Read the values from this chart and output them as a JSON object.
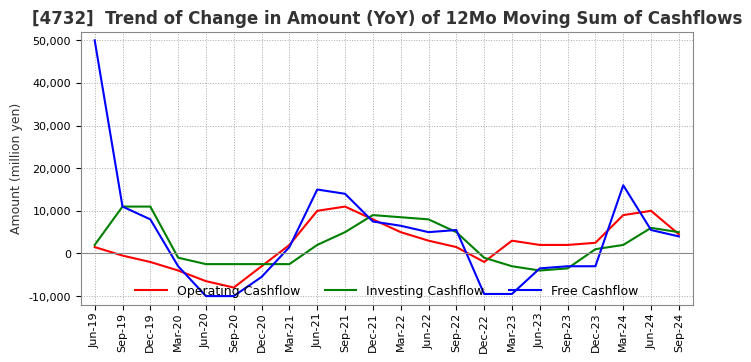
{
  "title": "[4732]  Trend of Change in Amount (YoY) of 12Mo Moving Sum of Cashflows",
  "ylabel": "Amount (million yen)",
  "xlabel": "",
  "background_color": "#ffffff",
  "grid_color": "#aaaaaa",
  "title_fontsize": 12,
  "label_fontsize": 9,
  "tick_fontsize": 8,
  "x_labels": [
    "Jun-19",
    "Sep-19",
    "Dec-19",
    "Mar-20",
    "Jun-20",
    "Sep-20",
    "Dec-20",
    "Mar-21",
    "Jun-21",
    "Sep-21",
    "Dec-21",
    "Mar-22",
    "Jun-22",
    "Sep-22",
    "Dec-22",
    "Mar-23",
    "Jun-23",
    "Sep-23",
    "Dec-23",
    "Mar-24",
    "Jun-24",
    "Sep-24"
  ],
  "operating_cashflow": [
    1500,
    -500,
    -2000,
    -4000,
    -6500,
    -8000,
    -3000,
    2000,
    10000,
    11000,
    8000,
    5000,
    3000,
    1500,
    -2000,
    3000,
    2000,
    2000,
    2500,
    9000,
    10000,
    4500
  ],
  "investing_cashflow": [
    2000,
    11000,
    11000,
    -1000,
    -2500,
    -2500,
    -2500,
    -2500,
    2000,
    5000,
    9000,
    8500,
    8000,
    5000,
    -1000,
    -3000,
    -4000,
    -3500,
    1000,
    2000,
    6000,
    5000
  ],
  "free_cashflow": [
    50000,
    11000,
    8000,
    -3000,
    -10000,
    -10000,
    -5500,
    1500,
    15000,
    14000,
    7500,
    6500,
    5000,
    5500,
    -9500,
    -9500,
    -3500,
    -3000,
    -3000,
    16000,
    5500,
    4000
  ],
  "operating_color": "#ff0000",
  "investing_color": "#008000",
  "free_color": "#0000ff",
  "ylim": [
    -12000,
    52000
  ],
  "yticks": [
    -10000,
    0,
    10000,
    20000,
    30000,
    40000,
    50000
  ]
}
